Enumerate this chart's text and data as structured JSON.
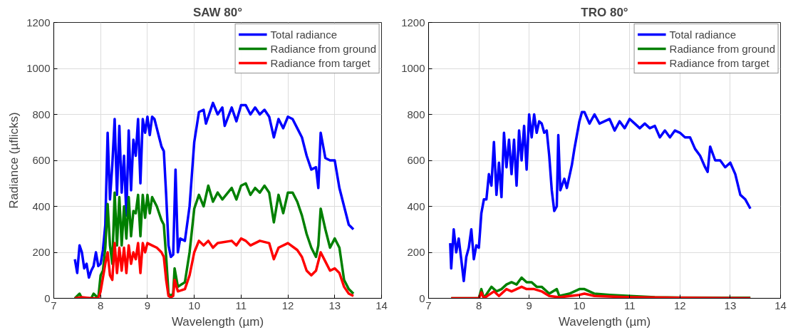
{
  "chart_data": [
    {
      "type": "line",
      "title": "SAW 80°",
      "xlabel": "Wavelength (µm)",
      "ylabel": "Radiance (µflicks)",
      "xlim": [
        7,
        14
      ],
      "ylim": [
        0,
        1200
      ],
      "xticks": [
        7,
        8,
        9,
        10,
        11,
        12,
        13,
        14
      ],
      "yticks": [
        0,
        200,
        400,
        600,
        800,
        1000,
        1200
      ],
      "grid": true,
      "legend": "top right",
      "marker": "none",
      "line_style": "solid",
      "series": [
        {
          "name": "Total radiance",
          "color": "#0000ff",
          "x": [
            7.45,
            7.5,
            7.55,
            7.6,
            7.65,
            7.7,
            7.75,
            7.8,
            7.85,
            7.9,
            7.95,
            8.0,
            8.05,
            8.1,
            8.15,
            8.2,
            8.25,
            8.3,
            8.35,
            8.4,
            8.45,
            8.5,
            8.55,
            8.6,
            8.65,
            8.7,
            8.75,
            8.8,
            8.85,
            8.9,
            8.95,
            9.0,
            9.05,
            9.1,
            9.15,
            9.2,
            9.25,
            9.3,
            9.35,
            9.4,
            9.45,
            9.5,
            9.55,
            9.6,
            9.65,
            9.7,
            9.8,
            9.9,
            10.0,
            10.1,
            10.2,
            10.25,
            10.3,
            10.4,
            10.5,
            10.6,
            10.65,
            10.8,
            10.9,
            11.0,
            11.1,
            11.2,
            11.3,
            11.4,
            11.5,
            11.6,
            11.7,
            11.8,
            11.9,
            12.0,
            12.1,
            12.2,
            12.3,
            12.4,
            12.5,
            12.6,
            12.65,
            12.7,
            12.8,
            12.9,
            13.0,
            13.1,
            13.2,
            13.3,
            13.4
          ],
          "values": [
            170,
            110,
            230,
            200,
            130,
            150,
            90,
            120,
            140,
            200,
            140,
            150,
            210,
            320,
            720,
            430,
            580,
            780,
            450,
            750,
            460,
            620,
            360,
            730,
            470,
            690,
            620,
            780,
            500,
            780,
            720,
            790,
            710,
            790,
            780,
            740,
            700,
            660,
            640,
            450,
            230,
            180,
            190,
            560,
            200,
            260,
            250,
            400,
            680,
            810,
            820,
            760,
            790,
            850,
            800,
            830,
            750,
            830,
            770,
            840,
            840,
            800,
            830,
            800,
            820,
            790,
            700,
            780,
            740,
            790,
            780,
            740,
            700,
            620,
            560,
            570,
            480,
            720,
            610,
            600,
            600,
            480,
            400,
            320,
            300
          ]
        },
        {
          "name": "Radiance from ground",
          "color": "#008000",
          "x": [
            7.45,
            7.55,
            7.6,
            7.8,
            7.85,
            7.95,
            8.0,
            8.05,
            8.1,
            8.15,
            8.2,
            8.25,
            8.3,
            8.35,
            8.4,
            8.45,
            8.5,
            8.55,
            8.6,
            8.65,
            8.7,
            8.75,
            8.8,
            8.85,
            8.9,
            8.95,
            9.0,
            9.05,
            9.1,
            9.2,
            9.3,
            9.35,
            9.4,
            9.45,
            9.5,
            9.55,
            9.58,
            9.65,
            9.8,
            9.9,
            10.0,
            10.1,
            10.2,
            10.3,
            10.4,
            10.5,
            10.6,
            10.8,
            10.9,
            11.0,
            11.1,
            11.2,
            11.3,
            11.4,
            11.5,
            11.6,
            11.7,
            11.8,
            11.9,
            12.0,
            12.1,
            12.2,
            12.3,
            12.4,
            12.5,
            12.6,
            12.65,
            12.7,
            12.8,
            12.9,
            13.0,
            13.1,
            13.2,
            13.3,
            13.4
          ],
          "values": [
            0,
            20,
            0,
            0,
            20,
            0,
            100,
            120,
            220,
            410,
            230,
            150,
            460,
            230,
            440,
            230,
            400,
            260,
            440,
            270,
            380,
            370,
            450,
            270,
            450,
            350,
            450,
            370,
            440,
            400,
            340,
            320,
            180,
            20,
            10,
            20,
            130,
            50,
            70,
            200,
            390,
            450,
            400,
            490,
            420,
            460,
            430,
            480,
            430,
            490,
            500,
            450,
            480,
            460,
            490,
            460,
            330,
            450,
            370,
            460,
            460,
            420,
            360,
            280,
            220,
            180,
            230,
            390,
            300,
            220,
            260,
            220,
            80,
            40,
            20
          ]
        },
        {
          "name": "Radiance from target",
          "color": "#ff0000",
          "x": [
            7.45,
            7.6,
            7.8,
            7.95,
            8.0,
            8.1,
            8.15,
            8.2,
            8.25,
            8.3,
            8.35,
            8.4,
            8.45,
            8.5,
            8.55,
            8.6,
            8.65,
            8.7,
            8.75,
            8.8,
            8.85,
            8.9,
            8.95,
            9.0,
            9.1,
            9.2,
            9.3,
            9.35,
            9.4,
            9.45,
            9.5,
            9.55,
            9.58,
            9.65,
            9.8,
            9.9,
            10.0,
            10.1,
            10.2,
            10.3,
            10.4,
            10.5,
            10.8,
            10.9,
            11.0,
            11.1,
            11.2,
            11.4,
            11.6,
            11.7,
            11.8,
            12.0,
            12.2,
            12.3,
            12.4,
            12.5,
            12.6,
            12.7,
            12.8,
            12.9,
            13.0,
            13.1,
            13.2,
            13.3,
            13.4
          ],
          "values": [
            0,
            5,
            0,
            0,
            30,
            150,
            200,
            100,
            80,
            240,
            110,
            220,
            120,
            220,
            110,
            230,
            150,
            200,
            170,
            240,
            110,
            240,
            200,
            240,
            230,
            220,
            200,
            180,
            80,
            10,
            5,
            10,
            80,
            30,
            40,
            100,
            200,
            250,
            230,
            250,
            220,
            240,
            250,
            230,
            260,
            250,
            230,
            250,
            240,
            170,
            220,
            240,
            210,
            180,
            120,
            100,
            120,
            200,
            160,
            120,
            130,
            110,
            50,
            20,
            10
          ]
        }
      ]
    },
    {
      "type": "line",
      "title": "TRO 80°",
      "xlabel": "Wavelength (µm)",
      "xlim": [
        7,
        14
      ],
      "ylim": [
        0,
        1200
      ],
      "xticks": [
        7,
        8,
        9,
        10,
        11,
        12,
        13,
        14
      ],
      "yticks": [
        0,
        200,
        400,
        600,
        800,
        1000,
        1200
      ],
      "grid": true,
      "legend": "top right",
      "marker": "none",
      "line_style": "solid",
      "series": [
        {
          "name": "Total radiance",
          "color": "#0000ff",
          "x": [
            7.43,
            7.45,
            7.5,
            7.55,
            7.6,
            7.65,
            7.7,
            7.75,
            7.8,
            7.85,
            7.9,
            7.95,
            8.0,
            8.05,
            8.1,
            8.15,
            8.2,
            8.25,
            8.3,
            8.35,
            8.4,
            8.45,
            8.5,
            8.55,
            8.6,
            8.65,
            8.7,
            8.75,
            8.8,
            8.85,
            8.9,
            8.95,
            9.0,
            9.05,
            9.1,
            9.15,
            9.2,
            9.25,
            9.3,
            9.35,
            9.4,
            9.45,
            9.5,
            9.55,
            9.58,
            9.62,
            9.7,
            9.75,
            9.8,
            9.85,
            9.9,
            10.0,
            10.05,
            10.1,
            10.2,
            10.3,
            10.4,
            10.5,
            10.6,
            10.7,
            10.8,
            10.9,
            11.0,
            11.1,
            11.2,
            11.3,
            11.4,
            11.5,
            11.6,
            11.7,
            11.8,
            11.9,
            12.0,
            12.1,
            12.2,
            12.3,
            12.4,
            12.5,
            12.55,
            12.6,
            12.7,
            12.8,
            12.9,
            13.0,
            13.1,
            13.2,
            13.3,
            13.4
          ],
          "values": [
            240,
            130,
            300,
            200,
            260,
            170,
            75,
            180,
            220,
            300,
            170,
            230,
            220,
            370,
            430,
            430,
            540,
            490,
            680,
            450,
            590,
            440,
            720,
            570,
            690,
            540,
            690,
            490,
            730,
            600,
            750,
            560,
            800,
            700,
            800,
            720,
            770,
            760,
            720,
            730,
            620,
            470,
            380,
            400,
            710,
            470,
            520,
            480,
            530,
            580,
            650,
            770,
            810,
            810,
            760,
            800,
            760,
            770,
            780,
            730,
            770,
            740,
            780,
            760,
            740,
            760,
            740,
            750,
            700,
            730,
            700,
            730,
            720,
            700,
            700,
            650,
            620,
            570,
            550,
            660,
            600,
            600,
            570,
            590,
            540,
            450,
            430,
            390
          ]
        },
        {
          "name": "Radiance from ground",
          "color": "#008000",
          "x": [
            7.45,
            8.0,
            8.05,
            8.1,
            8.25,
            8.35,
            8.45,
            8.55,
            8.65,
            8.75,
            8.85,
            8.95,
            9.05,
            9.15,
            9.25,
            9.4,
            9.55,
            9.6,
            9.8,
            9.9,
            10.0,
            10.1,
            10.2,
            10.3,
            10.6,
            11.0,
            11.5,
            12.0,
            13.0,
            13.4
          ],
          "values": [
            0,
            0,
            40,
            0,
            50,
            30,
            40,
            60,
            70,
            60,
            90,
            70,
            70,
            50,
            50,
            20,
            40,
            10,
            20,
            30,
            40,
            40,
            30,
            20,
            15,
            10,
            5,
            3,
            2,
            2
          ]
        },
        {
          "name": "Radiance from target",
          "color": "#ff0000",
          "x": [
            7.45,
            8.0,
            8.05,
            8.1,
            8.3,
            8.4,
            8.55,
            8.65,
            8.85,
            8.95,
            9.1,
            9.25,
            9.4,
            9.6,
            10.0,
            10.1,
            10.3,
            11.0,
            12.0,
            13.4
          ],
          "values": [
            0,
            0,
            25,
            0,
            30,
            10,
            40,
            30,
            50,
            40,
            40,
            30,
            10,
            5,
            15,
            20,
            10,
            5,
            2,
            0
          ]
        }
      ]
    }
  ]
}
